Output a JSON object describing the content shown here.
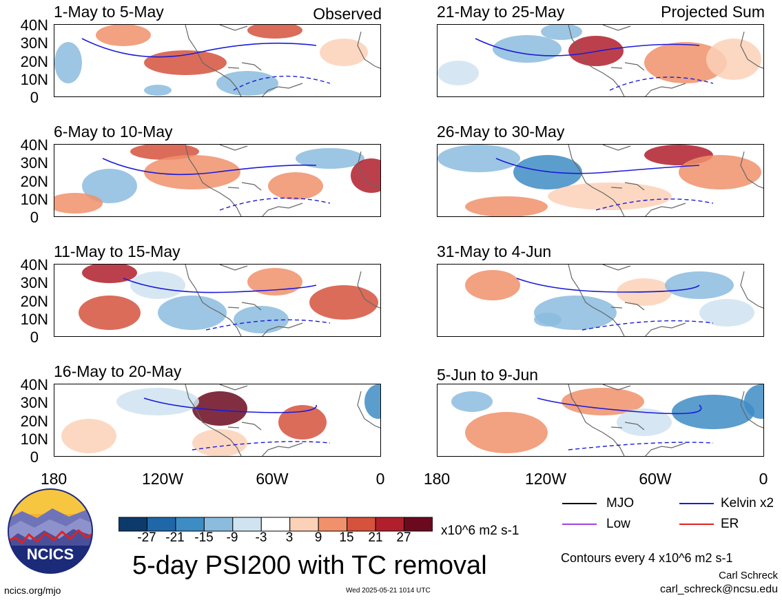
{
  "panels": [
    {
      "title": "1-May to 5-May",
      "tag": "Observed"
    },
    {
      "title": "21-May to 25-May",
      "tag": "Projected Sum"
    },
    {
      "title": "6-May to 10-May",
      "tag": ""
    },
    {
      "title": "26-May to 30-May",
      "tag": ""
    },
    {
      "title": "11-May to 15-May",
      "tag": ""
    },
    {
      "title": "31-May to 4-Jun",
      "tag": ""
    },
    {
      "title": "16-May to 20-May",
      "tag": ""
    },
    {
      "title": "5-Jun to 9-Jun",
      "tag": ""
    }
  ],
  "y_ticks": [
    "40N",
    "30N",
    "20N",
    "10N",
    "0"
  ],
  "x_ticks": [
    "180",
    "120W",
    "60W",
    "0"
  ],
  "colorbar": {
    "labels": [
      "-27",
      "-21",
      "-15",
      "-9",
      "-3",
      "3",
      "9",
      "15",
      "21",
      "27"
    ],
    "colors": [
      "#0d3a6b",
      "#1f67a8",
      "#3e8cc4",
      "#8bbcde",
      "#cfe3f1",
      "#ffffff",
      "#fbd1b8",
      "#f0916b",
      "#d5523d",
      "#b01f2b",
      "#6b0a1e"
    ],
    "units": "x10^6 m2 s-1"
  },
  "title": "5-day PSI200 with TC removal",
  "legend": [
    {
      "label": "MJO",
      "color": "#000000"
    },
    {
      "label": "Kelvin x2",
      "color": "#1a1adb"
    },
    {
      "label": "Low",
      "color": "#a040e0"
    },
    {
      "label": "ER",
      "color": "#e02020"
    }
  ],
  "contour_note": "Contours every 4 x10^6 m2 s-1",
  "author": "Carl Schreck",
  "email": "carl_schreck@ncsu.edu",
  "url": "ncics.org/mjo",
  "timestamp": "Wed 2025-05-21 1014 UTC",
  "logo_text": "NCICS"
}
